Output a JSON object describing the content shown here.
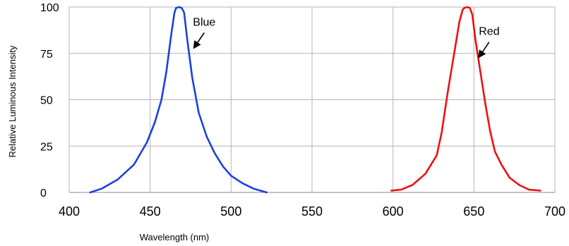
{
  "chart_data": {
    "type": "line",
    "xlabel": "Wavelength (nm)",
    "ylabel": "Relative Luminous Intensity",
    "xlim": [
      400,
      700
    ],
    "ylim": [
      0,
      100
    ],
    "x_ticks": [
      400,
      450,
      500,
      550,
      600,
      650,
      700
    ],
    "y_ticks": [
      0,
      25,
      50,
      75,
      100
    ],
    "grid": true,
    "series": [
      {
        "name": "Blue",
        "color": "#1f3fe0",
        "points": [
          [
            413,
            0
          ],
          [
            420,
            2
          ],
          [
            430,
            7
          ],
          [
            440,
            15
          ],
          [
            448,
            27
          ],
          [
            453,
            38
          ],
          [
            457,
            50
          ],
          [
            460,
            65
          ],
          [
            463,
            85
          ],
          [
            465,
            97
          ],
          [
            466,
            99.5
          ],
          [
            468,
            100
          ],
          [
            469.5,
            99.5
          ],
          [
            471,
            97
          ],
          [
            473,
            82
          ],
          [
            476,
            62
          ],
          [
            480,
            43
          ],
          [
            485,
            30
          ],
          [
            490,
            21
          ],
          [
            495,
            14
          ],
          [
            500,
            9
          ],
          [
            507,
            5
          ],
          [
            514,
            2
          ],
          [
            522,
            0
          ]
        ]
      },
      {
        "name": "Red",
        "color": "#ee1111",
        "points": [
          [
            599,
            1
          ],
          [
            605,
            1.5
          ],
          [
            612,
            4
          ],
          [
            620,
            10
          ],
          [
            627,
            20
          ],
          [
            630,
            32
          ],
          [
            634,
            55
          ],
          [
            638,
            76
          ],
          [
            641,
            92
          ],
          [
            643,
            98.5
          ],
          [
            644,
            99.5
          ],
          [
            646,
            100
          ],
          [
            647.5,
            99.5
          ],
          [
            649,
            96
          ],
          [
            651,
            82
          ],
          [
            654,
            65
          ],
          [
            657,
            48
          ],
          [
            660,
            33
          ],
          [
            663,
            22
          ],
          [
            667,
            15
          ],
          [
            672,
            8
          ],
          [
            678,
            4
          ],
          [
            684,
            1.5
          ],
          [
            691,
            1
          ]
        ]
      }
    ],
    "annotations": [
      {
        "label": "Blue",
        "target": [
          476,
          77
        ]
      },
      {
        "label": "Red",
        "target": [
          652,
          72
        ]
      }
    ]
  }
}
